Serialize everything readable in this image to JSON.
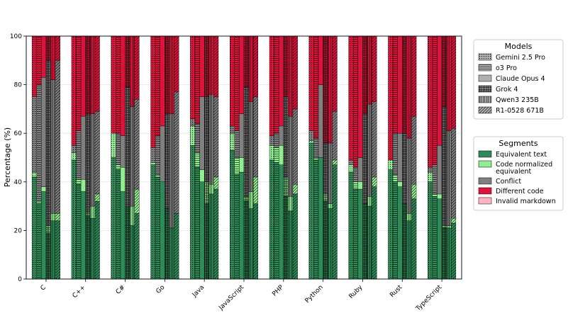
{
  "chart_data": {
    "type": "bar",
    "stacked": true,
    "grouped": true,
    "ylabel": "Percentage (%)",
    "ylim": [
      0,
      100
    ],
    "yticks": [
      "0",
      "20",
      "40",
      "60",
      "80",
      "100"
    ],
    "grid": true,
    "categories": [
      "C",
      "C++",
      "C#",
      "Go",
      "Java",
      "JavaScript",
      "PHP",
      "Python",
      "Ruby",
      "Rust",
      "TypeScript"
    ],
    "models_legend": {
      "title": "Models",
      "placement": "top-right",
      "items": [
        {
          "name": "Gemini 2.5 Pro",
          "pattern": "dots"
        },
        {
          "name": "o3 Pro",
          "pattern": "hline"
        },
        {
          "name": "Claude Opus 4",
          "pattern": "none"
        },
        {
          "name": "Grok 4",
          "pattern": "grid"
        },
        {
          "name": "Qwen3 235B",
          "pattern": "vline"
        },
        {
          "name": "R1-0528 671B",
          "pattern": "diag"
        }
      ]
    },
    "segments_legend": {
      "title": "Segments",
      "placement": "right",
      "items": [
        {
          "name": "Equivalent text",
          "color": "#2e8b57"
        },
        {
          "name": "Code normalized\nequivalent",
          "color": "#90ee90"
        },
        {
          "name": "Conflict",
          "color": "#808080"
        },
        {
          "name": "Different code",
          "color": "#dc143c"
        },
        {
          "name": "Invalid markdown",
          "color": "#ffb6c1"
        }
      ]
    },
    "data": {
      "C": [
        [
          42,
          2,
          31,
          25,
          0
        ],
        [
          31,
          1,
          48,
          20,
          0
        ],
        [
          36,
          2,
          45,
          17,
          0
        ],
        [
          19,
          3,
          68,
          10,
          0
        ],
        [
          24,
          3,
          55,
          18,
          0
        ],
        [
          24,
          3,
          63,
          10,
          0
        ]
      ],
      "C++": [
        [
          49,
          3,
          3,
          45,
          0
        ],
        [
          39,
          2,
          20,
          39,
          0
        ],
        [
          36,
          5,
          26,
          33,
          0
        ],
        [
          26,
          1,
          41,
          32,
          0
        ],
        [
          25,
          5,
          38,
          32,
          0
        ],
        [
          32,
          3,
          34,
          31,
          0
        ]
      ],
      "C#": [
        [
          50,
          10,
          0,
          40,
          0
        ],
        [
          45,
          2,
          13,
          40,
          0
        ],
        [
          36,
          10,
          13,
          41,
          0
        ],
        [
          30,
          0,
          49,
          21,
          0
        ],
        [
          22,
          8,
          41,
          29,
          0
        ],
        [
          27,
          10,
          37,
          26,
          0
        ]
      ],
      "Go": [
        [
          47,
          1,
          6,
          46,
          0
        ],
        [
          42,
          1,
          16,
          41,
          0
        ],
        [
          40,
          0,
          23,
          37,
          0
        ],
        [
          29,
          0,
          39,
          32,
          0
        ],
        [
          21,
          0,
          47,
          32,
          0
        ],
        [
          27,
          0,
          50,
          23,
          0
        ]
      ],
      "Java": [
        [
          55,
          8,
          3,
          34,
          0
        ],
        [
          46,
          6,
          12,
          36,
          0
        ],
        [
          40,
          5,
          30,
          25,
          0
        ],
        [
          31,
          9,
          35,
          25,
          0
        ],
        [
          35,
          4,
          37,
          24,
          0
        ],
        [
          37,
          5,
          33,
          25,
          0
        ]
      ],
      "JavaScript": [
        [
          53,
          7,
          3,
          37,
          0
        ],
        [
          43,
          7,
          11,
          39,
          0
        ],
        [
          44,
          6,
          18,
          32,
          0
        ],
        [
          32,
          2,
          45,
          21,
          0
        ],
        [
          29,
          7,
          37,
          27,
          0
        ],
        [
          31,
          11,
          33,
          25,
          0
        ]
      ],
      "PHP": [
        [
          49,
          6,
          4,
          41,
          0
        ],
        [
          48,
          6,
          6,
          40,
          0
        ],
        [
          47,
          8,
          8,
          37,
          0
        ],
        [
          34,
          8,
          33,
          25,
          0
        ],
        [
          28,
          6,
          33,
          33,
          0
        ],
        [
          35,
          4,
          31,
          30,
          0
        ]
      ],
      "Python": [
        [
          56,
          1,
          4,
          39,
          0
        ],
        [
          49,
          1,
          8,
          42,
          0
        ],
        [
          50,
          0,
          30,
          20,
          0
        ],
        [
          32,
          3,
          21,
          44,
          0
        ],
        [
          29,
          2,
          25,
          44,
          0
        ],
        [
          47,
          2,
          20,
          31,
          0
        ]
      ],
      "Ruby": [
        [
          44,
          3,
          2,
          51,
          0
        ],
        [
          37,
          3,
          6,
          54,
          0
        ],
        [
          37,
          3,
          10,
          50,
          0
        ],
        [
          31,
          0,
          37,
          32,
          0
        ],
        [
          30,
          4,
          38,
          28,
          0
        ],
        [
          38,
          4,
          31,
          27,
          0
        ]
      ],
      "Rust": [
        [
          45,
          4,
          0,
          51,
          0
        ],
        [
          40,
          3,
          17,
          40,
          0
        ],
        [
          38,
          2,
          20,
          40,
          0
        ],
        [
          31,
          0,
          29,
          40,
          0
        ],
        [
          24,
          3,
          31,
          42,
          0
        ],
        [
          33,
          6,
          28,
          33,
          0
        ]
      ],
      "TypeScript": [
        [
          40,
          4,
          2,
          54,
          0
        ],
        [
          34,
          1,
          12,
          53,
          0
        ],
        [
          33,
          2,
          20,
          45,
          0
        ],
        [
          21,
          1,
          49,
          29,
          0
        ],
        [
          21,
          1,
          39,
          39,
          0
        ],
        [
          23,
          2,
          37,
          38,
          0
        ]
      ]
    }
  }
}
